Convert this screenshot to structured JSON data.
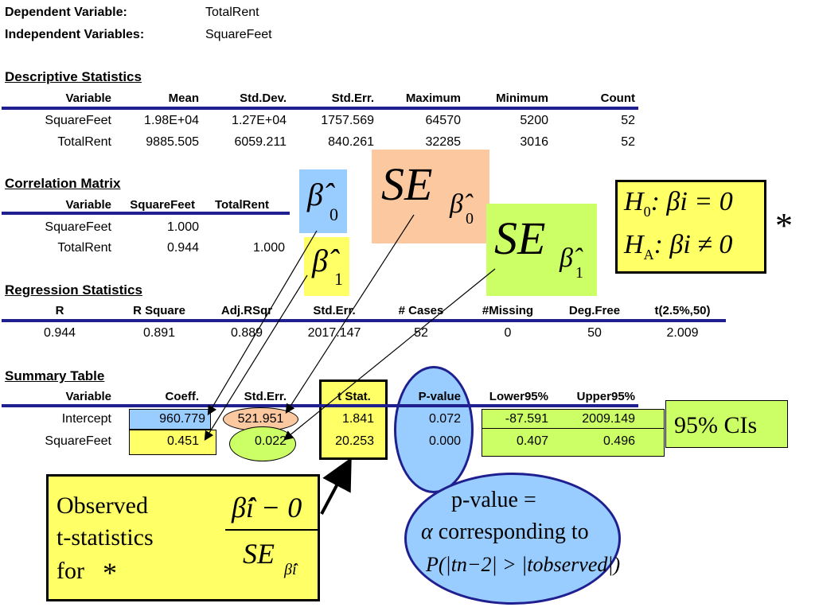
{
  "header": {
    "dep_label": "Dependent Variable:",
    "dep_value": "TotalRent",
    "indep_label": "Independent Variables:",
    "indep_value": "SquareFeet"
  },
  "descriptive": {
    "title": "Descriptive Statistics",
    "columns": [
      "Variable",
      "Mean",
      "Std.Dev.",
      "Std.Err.",
      "Maximum",
      "Minimum",
      "Count"
    ],
    "rows": [
      [
        "SquareFeet",
        "1.98E+04",
        "1.27E+04",
        "1757.569",
        "64570",
        "5200",
        "52"
      ],
      [
        "TotalRent",
        "9885.505",
        "6059.211",
        "840.261",
        "32285",
        "3016",
        "52"
      ]
    ]
  },
  "correlation": {
    "title": "Correlation Matrix",
    "columns": [
      "Variable",
      "SquareFeet",
      "TotalRent"
    ],
    "rows": [
      [
        "SquareFeet",
        "1.000",
        ""
      ],
      [
        "TotalRent",
        "0.944",
        "1.000"
      ]
    ]
  },
  "regression": {
    "title": "Regression Statistics",
    "columns": [
      "R",
      "R Square",
      "Adj.RSqr",
      "Std.Err.",
      "# Cases",
      "#Missing",
      "Deg.Free",
      "t(2.5%,50)"
    ],
    "values": [
      "0.944",
      "0.891",
      "0.889",
      "2017.147",
      "52",
      "0",
      "50",
      "2.009"
    ]
  },
  "summary": {
    "title": "Summary Table",
    "columns": [
      "Variable",
      "Coeff.",
      "Std.Err.",
      "t Stat.",
      "P-value",
      "Lower95%",
      "Upper95%"
    ],
    "rows": [
      [
        "Intercept",
        "960.779",
        "521.951",
        "1.841",
        "0.072",
        "-87.591",
        "2009.149"
      ],
      [
        "SquareFeet",
        "0.451",
        "0.022",
        "20.253",
        "0.000",
        "0.407",
        "0.496"
      ]
    ]
  },
  "annotations": {
    "beta0_hat": "β̂",
    "beta0_sub": "0",
    "beta1_hat": "β̂",
    "beta1_sub": "1",
    "se": "SE",
    "se_beta0_sub": "β̂",
    "se_beta0_subsub": "0",
    "se_beta1_sub": "β̂",
    "se_beta1_subsub": "1",
    "hyp_h0": "H",
    "hyp_h0_sub": "0",
    "hyp_h0_rest": ":  βi = 0",
    "hyp_ha": "H",
    "hyp_ha_sub": "A",
    "hyp_ha_rest": ":  βi ≠ 0",
    "asterisk": "*",
    "ci_label": "95% CIs",
    "obs_line1": "Observed",
    "obs_line2": "t-statistics",
    "obs_line3": "for",
    "obs_asterisk": "*",
    "formula_num": "β̂i − 0",
    "formula_den": "SE",
    "formula_den_sub": "β̂i",
    "pval_line1": "p-value =",
    "pval_alpha": "α",
    "pval_line2": "corresponding to",
    "pval_line3": "P(|tn−2| > |tobserved|)"
  },
  "colors": {
    "rule": "#1f1f8f",
    "blue_box": "#99ccff",
    "yellow_box": "#ffff66",
    "orange_box": "#fbc8a0",
    "green_box": "#ccff66"
  }
}
